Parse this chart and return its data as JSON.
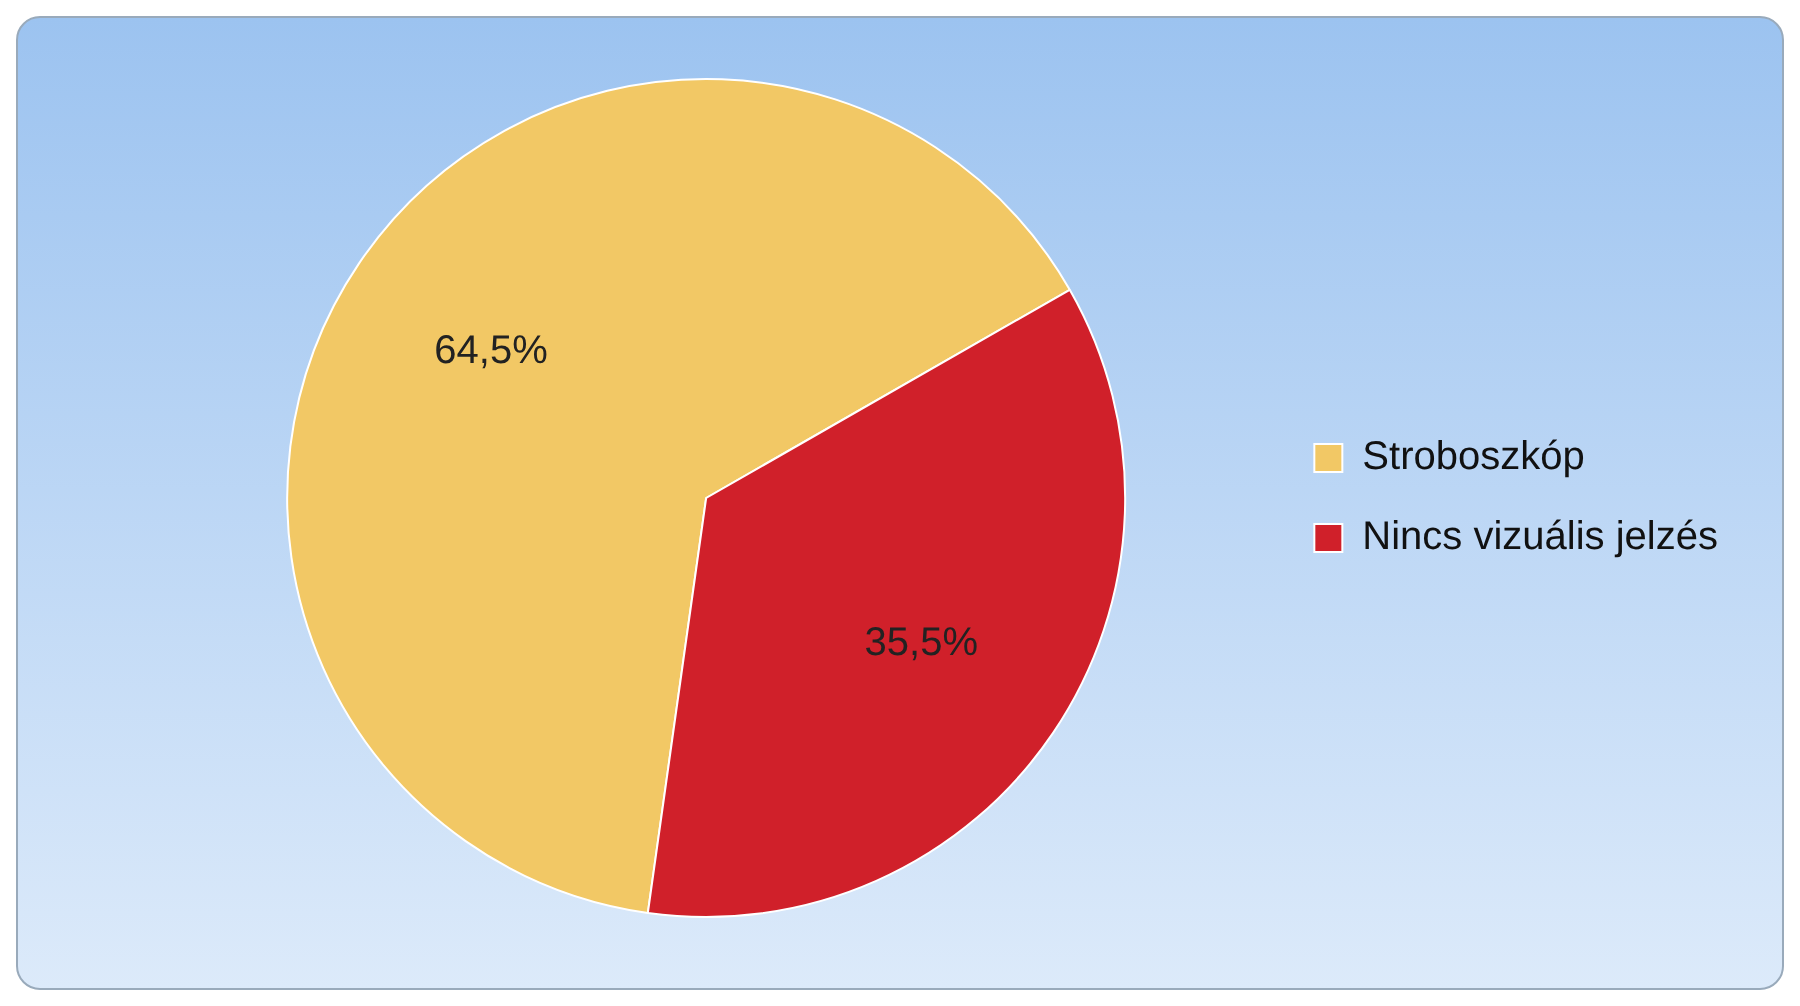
{
  "chart_data": {
    "type": "pie",
    "categories": [
      "Stroboszkóp",
      "Nincs vizuális jelzés"
    ],
    "values": [
      64.5,
      35.5
    ],
    "colors": [
      "#f2c865",
      "#d0202a"
    ],
    "value_labels": [
      "64,5%",
      "35,5%"
    ],
    "legend": "right"
  }
}
